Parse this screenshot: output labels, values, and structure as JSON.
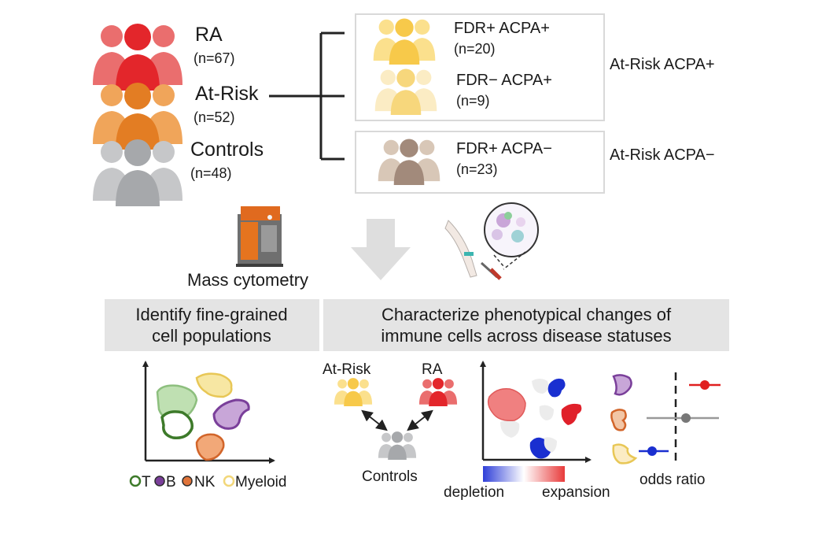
{
  "cohort": {
    "groups": [
      {
        "label": "RA",
        "n": "(n=67)",
        "color": "#e8383a"
      },
      {
        "label": "At-Risk",
        "n": "(n=52)",
        "color": "#ec8a2e"
      },
      {
        "label": "Controls",
        "n": "(n=48)",
        "color": "#a9abae"
      }
    ],
    "subgroups": [
      {
        "label": "FDR+ ACPA+",
        "n": "(n=20)",
        "color": "#f9d366"
      },
      {
        "label": "FDR− ACPA+",
        "n": "(n=9)",
        "color": "#fae3a4"
      },
      {
        "label": "FDR+ ACPA−",
        "n": "(n=23)",
        "color": "#a68e7e"
      }
    ],
    "category_pos": "At-Risk ACPA+",
    "category_neg": "At-Risk ACPA−"
  },
  "method": {
    "label": "Mass cytometry"
  },
  "panels": {
    "left_title_line1": "Identify fine-grained",
    "left_title_line2": "cell populations",
    "right_title_line1": "Characterize phenotypical changes of",
    "right_title_line2": "immune cells across disease statuses"
  },
  "legend": {
    "items": [
      {
        "label": "T",
        "color": "#3d7a2a"
      },
      {
        "label": "B",
        "color": "#7a3f9a"
      },
      {
        "label": "NK",
        "color": "#e0743a"
      },
      {
        "label": "Myeloid",
        "color": "#f2d77a"
      }
    ]
  },
  "comparison": {
    "at_risk": "At-Risk",
    "ra": "RA",
    "controls": "Controls"
  },
  "colorbar": {
    "low": "depletion",
    "high": "expansion",
    "low_color": "#2f3fd8",
    "high_color": "#e83a3a"
  },
  "odds": {
    "label": "odds ratio"
  }
}
